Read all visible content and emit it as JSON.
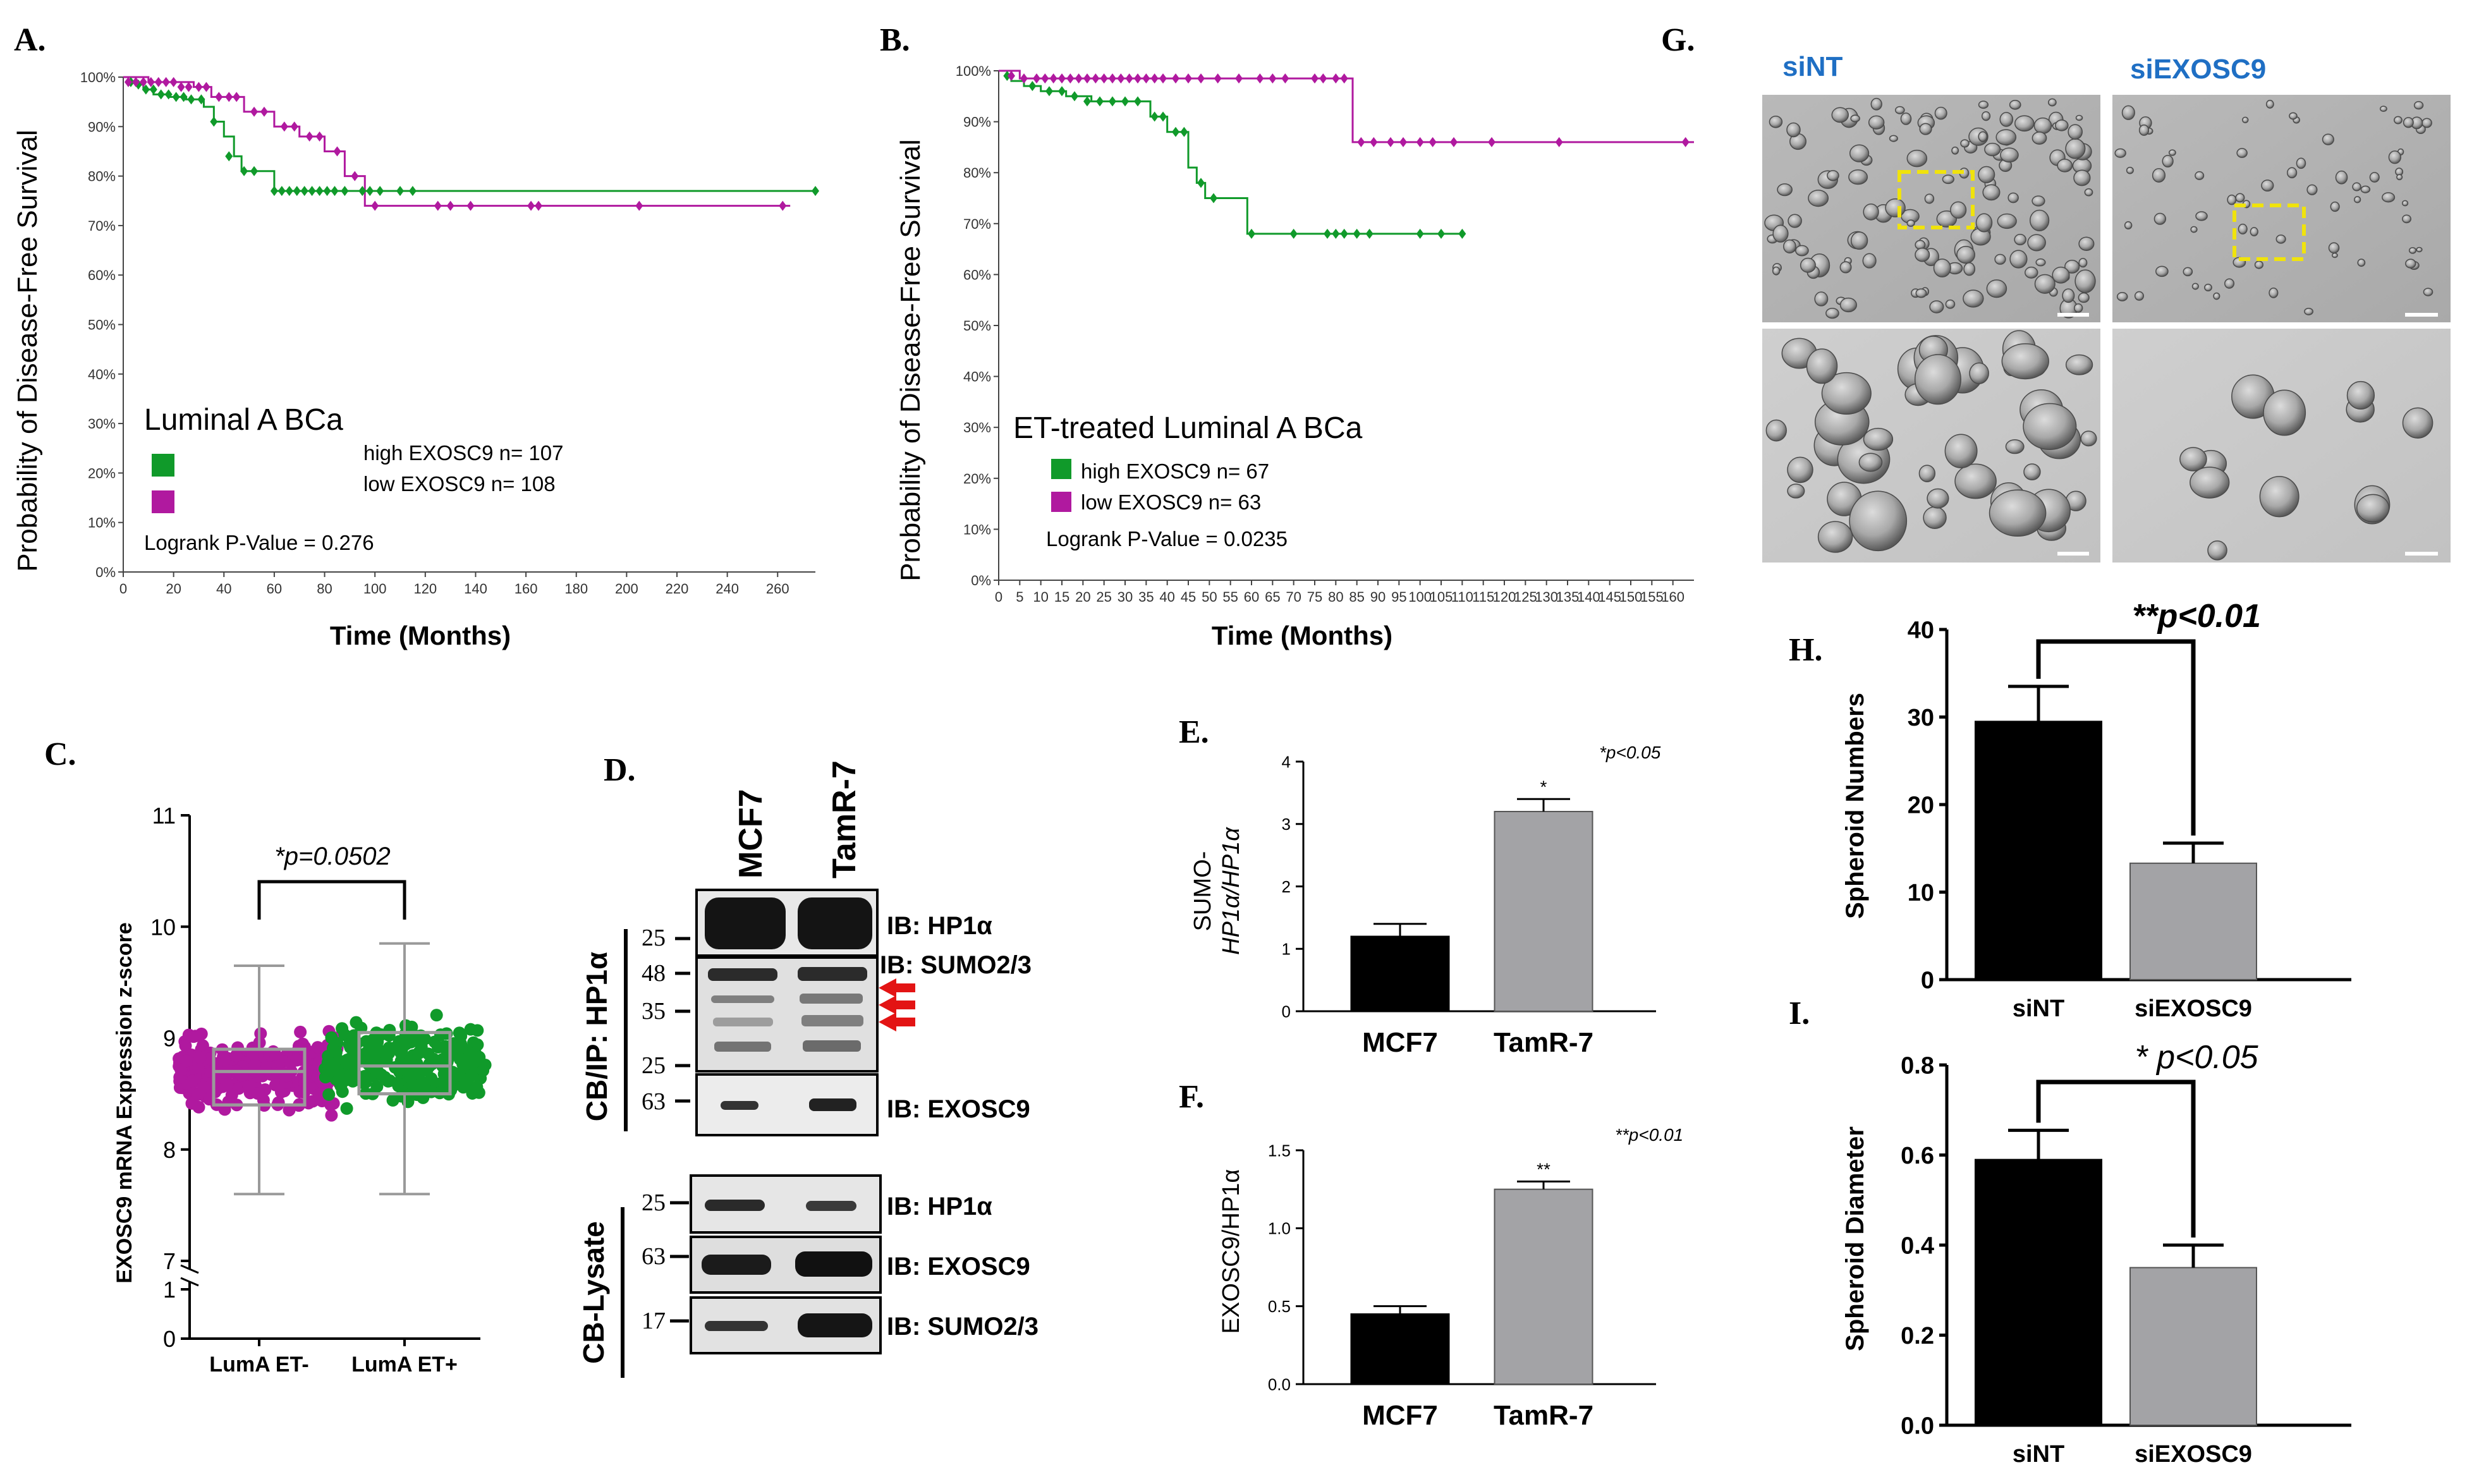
{
  "colors": {
    "high": "#109a2a",
    "low": "#b0199f",
    "black": "#000000",
    "gray": "#a3a3a6",
    "siNT_blue": "#1f6fc4",
    "yellow": "#f0e30c",
    "red": "#e31414"
  },
  "panels": {
    "A": "A.",
    "B": "B.",
    "C": "C.",
    "D": "D.",
    "E": "E.",
    "F": "F.",
    "G": "G.",
    "H": "H.",
    "I": "I."
  },
  "chart_data": [
    {
      "id": "A",
      "type": "line",
      "title": "Luminal A BCa",
      "xlabel": "Time (Months)",
      "ylabel": "Probability of Disease-Free Survival",
      "xlim": [
        0,
        275
      ],
      "ylim": [
        0,
        100
      ],
      "x_ticks": [
        0,
        20,
        40,
        60,
        80,
        100,
        120,
        140,
        160,
        180,
        200,
        220,
        240,
        260
      ],
      "y_ticks": [
        "0%",
        "10%",
        "20%",
        "30%",
        "40%",
        "50%",
        "60%",
        "70%",
        "80%",
        "90%",
        "100%"
      ],
      "legend": [
        "high EXOSC9 n= 107",
        "low EXOSC9 n= 108"
      ],
      "pvalue": "Logrank P-Value = 0.276",
      "series": [
        {
          "key": "high",
          "name": "high EXOSC9 n= 107",
          "x": [
            0,
            5,
            8,
            12,
            18,
            25,
            32,
            36,
            40,
            44,
            47,
            60,
            92,
            275
          ],
          "y": [
            100,
            98.5,
            97.5,
            96.5,
            96,
            95.5,
            94,
            91,
            88,
            84,
            81,
            77,
            77,
            77
          ],
          "censor_x": [
            3,
            6,
            9,
            12,
            15,
            18,
            21,
            24,
            27,
            31,
            36,
            42,
            48,
            52,
            60,
            63,
            66,
            69,
            72,
            75,
            78,
            81,
            84,
            88,
            95,
            98,
            102,
            110,
            115,
            275
          ],
          "censor_y": [
            99,
            98.5,
            97.5,
            97.5,
            96.5,
            96.5,
            96,
            96,
            95.5,
            95.5,
            91,
            84,
            81,
            81,
            77,
            77,
            77,
            77,
            77,
            77,
            77,
            77,
            77,
            77,
            77,
            77,
            77,
            77,
            77,
            77
          ]
        },
        {
          "key": "low",
          "name": "low EXOSC9 n= 108",
          "x": [
            0,
            10,
            28,
            35,
            48,
            60,
            70,
            80,
            88,
            96,
            265
          ],
          "y": [
            100,
            99,
            98,
            96,
            93,
            90,
            88,
            85,
            80,
            74,
            74
          ],
          "censor_x": [
            2,
            5,
            8,
            11,
            14,
            17,
            20,
            23,
            26,
            30,
            33,
            38,
            42,
            45,
            52,
            56,
            64,
            68,
            74,
            78,
            85,
            92,
            100,
            125,
            130,
            138,
            162,
            165,
            205,
            262
          ],
          "censor_y": [
            99,
            99,
            99,
            99,
            99,
            99,
            99,
            98,
            98,
            98,
            98,
            96,
            96,
            96,
            93,
            93,
            90,
            90,
            88,
            88,
            85,
            80,
            74,
            74,
            74,
            74,
            74,
            74,
            74,
            74
          ]
        }
      ]
    },
    {
      "id": "B",
      "type": "line",
      "title": "ET-treated Luminal A BCa",
      "xlabel": "Time (Months)",
      "ylabel": "Probability of Disease-Free Survival",
      "xlim": [
        0,
        165
      ],
      "ylim": [
        0,
        100
      ],
      "x_ticks": [
        0,
        5,
        10,
        15,
        20,
        25,
        30,
        35,
        40,
        45,
        50,
        55,
        60,
        65,
        70,
        75,
        80,
        85,
        90,
        95,
        100,
        105,
        110,
        115,
        120,
        125,
        130,
        135,
        140,
        145,
        150,
        155,
        160
      ],
      "y_ticks": [
        "0%",
        "10%",
        "20%",
        "30%",
        "40%",
        "50%",
        "60%",
        "70%",
        "80%",
        "90%",
        "100%"
      ],
      "legend": [
        "high EXOSC9 n= 67",
        "low EXOSC9 n= 63"
      ],
      "pvalue": "Logrank P-Value = 0.0235",
      "series": [
        {
          "key": "high",
          "name": "high EXOSC9 n= 67",
          "x": [
            0,
            3,
            6,
            10,
            16,
            22,
            36,
            40,
            45,
            47,
            49,
            59,
            110
          ],
          "y": [
            100,
            98,
            97,
            96,
            95,
            94,
            91,
            88,
            81,
            78,
            75,
            68,
            68
          ],
          "censor_x": [
            2,
            8,
            12,
            15,
            18,
            21,
            24,
            27,
            30,
            33,
            37,
            39,
            42,
            44,
            48,
            51,
            60,
            70,
            78,
            80,
            82,
            85,
            88,
            100,
            105,
            110
          ],
          "censor_y": [
            99,
            97,
            96,
            96,
            95,
            94,
            94,
            94,
            94,
            94,
            91,
            91,
            88,
            88,
            78,
            75,
            68,
            68,
            68,
            68,
            68,
            68,
            68,
            68,
            68,
            68
          ]
        },
        {
          "key": "low",
          "name": "low EXOSC9 n= 63",
          "x": [
            0,
            5,
            84,
            84,
            165
          ],
          "y": [
            100,
            98.5,
            98.5,
            86,
            86
          ],
          "censor_x": [
            3,
            6,
            9,
            11,
            13,
            15,
            17,
            19,
            21,
            23,
            25,
            27,
            29,
            31,
            33,
            35,
            37,
            39,
            42,
            45,
            48,
            52,
            57,
            62,
            65,
            68,
            75,
            77,
            80,
            82,
            86,
            89,
            93,
            96,
            100,
            103,
            108,
            117,
            133,
            163
          ],
          "censor_y": [
            99,
            98.5,
            98.5,
            98.5,
            98.5,
            98.5,
            98.5,
            98.5,
            98.5,
            98.5,
            98.5,
            98.5,
            98.5,
            98.5,
            98.5,
            98.5,
            98.5,
            98.5,
            98.5,
            98.5,
            98.5,
            98.5,
            98.5,
            98.5,
            98.5,
            98.5,
            98.5,
            98.5,
            98.5,
            98.5,
            86,
            86,
            86,
            86,
            86,
            86,
            86,
            86,
            86,
            86
          ]
        }
      ]
    },
    {
      "id": "C",
      "type": "scatter",
      "ylabel": "EXOSC9 mRNA Expression z-score",
      "categories": [
        "LumA ET-",
        "LumA ET+"
      ],
      "y_ticks_upper": [
        7,
        8,
        9,
        10,
        11
      ],
      "y_ticks_lower": [
        0,
        1
      ],
      "pvalue": "*p=0.0502",
      "box": [
        {
          "key": "low",
          "min": 7.6,
          "q1": 8.4,
          "median": 8.7,
          "q3": 8.9,
          "max": 9.65
        },
        {
          "key": "high",
          "min": 7.6,
          "q1": 8.5,
          "median": 8.75,
          "q3": 9.05,
          "max": 9.85
        }
      ]
    },
    {
      "id": "D",
      "type": "other",
      "lanes": [
        "MCF7",
        "TamR-7"
      ],
      "ip_group": "CB/IP: HP1α",
      "lysate_group": "CB-Lysate",
      "ip_blots": [
        {
          "label": "IB: HP1α",
          "markers": [
            "25"
          ]
        },
        {
          "label": "IB: SUMO2/3",
          "markers": [
            "48",
            "35",
            "25"
          ]
        },
        {
          "label": "IB: EXOSC9",
          "markers": [
            "63"
          ]
        }
      ],
      "lysate_blots": [
        {
          "label": "IB: HP1α",
          "markers": [
            "25"
          ]
        },
        {
          "label": "IB: EXOSC9",
          "markers": [
            "63"
          ]
        },
        {
          "label": "IB: SUMO2/3",
          "markers": [
            "17"
          ]
        }
      ]
    },
    {
      "id": "E",
      "type": "bar",
      "categories": [
        "MCF7",
        "TamR-7"
      ],
      "values": [
        1.2,
        3.2
      ],
      "errors": [
        0.2,
        0.2
      ],
      "ylim": [
        0,
        4
      ],
      "y_ticks": [
        0,
        1,
        2,
        3,
        4
      ],
      "ylabel_line1": "SUMO-",
      "ylabel_line2": "HP1α/HP1α",
      "significance": [
        "",
        "*"
      ],
      "pvalue": "*p<0.05"
    },
    {
      "id": "F",
      "type": "bar",
      "categories": [
        "MCF7",
        "TamR-7"
      ],
      "values": [
        0.45,
        1.25
      ],
      "errors": [
        0.05,
        0.05
      ],
      "ylim": [
        0,
        1.5
      ],
      "y_ticks": [
        "0.0",
        "0.5",
        "1.0",
        "1.5"
      ],
      "ylabel": "EXOSC9/HP1α",
      "significance": [
        "",
        "**"
      ],
      "pvalue": "**p<0.01"
    },
    {
      "id": "H",
      "type": "bar",
      "categories": [
        "siNT",
        "siEXOSC9"
      ],
      "values": [
        29.5,
        13.3
      ],
      "errors": [
        4,
        2.3
      ],
      "ylim": [
        0,
        40
      ],
      "y_ticks": [
        0,
        10,
        20,
        30,
        40
      ],
      "ylabel": "Spheroid Numbers",
      "pvalue": "**p<0.01"
    },
    {
      "id": "I",
      "type": "bar",
      "categories": [
        "siNT",
        "siEXOSC9"
      ],
      "values": [
        0.59,
        0.35
      ],
      "errors": [
        0.065,
        0.05
      ],
      "ylim": [
        0,
        0.8
      ],
      "y_ticks": [
        "0.0",
        "0.2",
        "0.4",
        "0.6",
        "0.8"
      ],
      "ylabel": "Spheroid Diameter",
      "pvalue": "* p<0.05"
    }
  ],
  "micrographs": {
    "labels": [
      "siNT",
      "siEXOSC9"
    ]
  }
}
